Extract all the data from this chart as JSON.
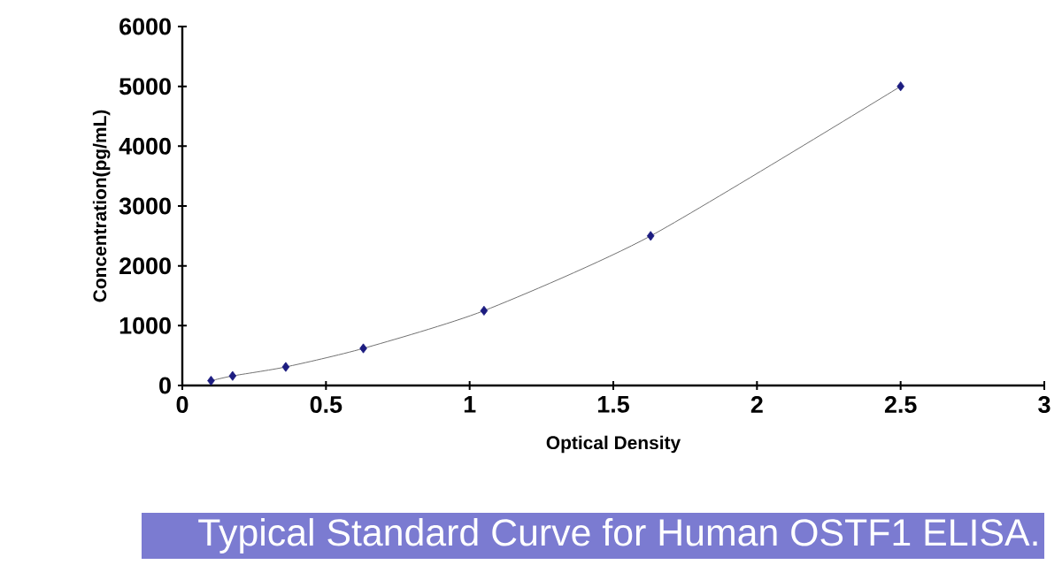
{
  "chart_data": {
    "type": "scatter",
    "xlabel": "Optical Density",
    "ylabel": "Concentration(pg/mL)",
    "annotations": [
      "Typical Standard Curve for Human OSTF1 ELISA."
    ],
    "xlim": [
      0,
      3
    ],
    "xticks": [
      0,
      0.5,
      1,
      1.5,
      2,
      2.5,
      3
    ],
    "ylim": [
      0,
      6000
    ],
    "yticks": [
      0,
      1000,
      2000,
      3000,
      4000,
      5000,
      6000
    ],
    "grid": false,
    "series": [
      {
        "type": "line",
        "marker": "none",
        "color": "#707070",
        "x": [
          0.1,
          0.175,
          0.36,
          0.63,
          1.05,
          1.63,
          2.5
        ],
        "values": [
          80,
          160,
          310,
          620,
          1250,
          2500,
          5000
        ]
      },
      {
        "marker": "diamond",
        "color": "#1c1c80",
        "x": [
          0.1,
          0.175,
          0.36,
          0.63,
          1.05,
          1.63,
          2.5
        ],
        "values": [
          80,
          160,
          310,
          620,
          1250,
          2500,
          5000
        ]
      }
    ]
  }
}
